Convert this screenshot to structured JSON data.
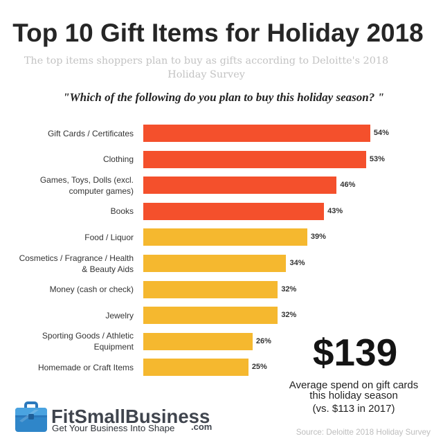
{
  "chart_data": {
    "type": "bar",
    "orientation": "horizontal",
    "title": "Top 10 Gift Items for Holiday 2018",
    "subtitle": [
      "The top items shoppers plan to buy as gifts according to Deloitte's 2018",
      "Holiday Survey"
    ],
    "question": "\"Which of the following do you plan to buy this holiday season? \"",
    "categories": [
      "Gift Cards / Certificates",
      "Clothing",
      "Games, Toys, Dolls (excl. computer games)",
      "Books",
      "Food / Liquor",
      "Cosmetics / Fragrance / Health & Beauty Aids",
      "Money (cash or check)",
      "Jewelry",
      "Sporting Goods / Athletic Equipment",
      "Homemade or Craft Items"
    ],
    "values": [
      54,
      53,
      46,
      43,
      39,
      34,
      32,
      32,
      26,
      25
    ],
    "value_labels": [
      "54%",
      "53%",
      "46%",
      "43%",
      "39%",
      "34%",
      "32%",
      "32%",
      "26%",
      "25%"
    ],
    "bar_colors": [
      "#F4502C",
      "#F4502C",
      "#F4502C",
      "#F4502C",
      "#F5B82F",
      "#F5B82F",
      "#F5B82F",
      "#F5B82F",
      "#F5B82F",
      "#F5B82F"
    ],
    "xlim": [
      0,
      55
    ],
    "grid": false
  },
  "callout": {
    "amount": "$139",
    "lines": [
      "Average spend on gift cards",
      "this holiday season",
      "(vs. $113 in 2017)"
    ]
  },
  "logo": {
    "icon": "briefcase-icon",
    "color": "#2F86C9",
    "name": "FitSmallBusiness",
    "tld": ".com",
    "tagline": "Get Your Business Into Shape"
  },
  "source": "Source: Deloitte 2018 Holiday Survey"
}
